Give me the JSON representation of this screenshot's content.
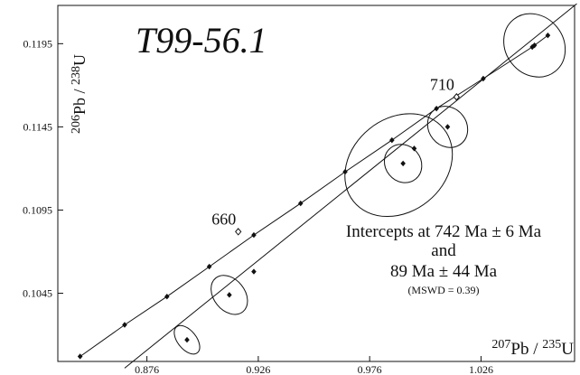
{
  "chart_data": {
    "type": "scatter",
    "title": "T99-56.1",
    "xlabel": {
      "sup1": "207",
      "el1": "Pb",
      "sep": " / ",
      "sup2": "235",
      "el2": "U"
    },
    "ylabel": {
      "sup1": "206",
      "el1": "Pb",
      "sep": " / ",
      "sup2": "238",
      "el2": "U"
    },
    "xlim": [
      0.836,
      1.068
    ],
    "ylim": [
      0.1004,
      0.1218
    ],
    "x_ticks": [
      "0.876",
      "0.926",
      "0.976",
      "1.026"
    ],
    "y_ticks": [
      "0.1195",
      "0.1145",
      "0.1095",
      "0.1045"
    ],
    "concordia": {
      "points": [
        [
          0.846,
          0.1007
        ],
        [
          0.866,
          0.1026
        ],
        [
          0.885,
          0.1043
        ],
        [
          0.904,
          0.1061
        ],
        [
          0.924,
          0.108
        ],
        [
          0.945,
          0.1099
        ],
        [
          0.965,
          0.1118
        ],
        [
          0.986,
          0.1137
        ],
        [
          1.006,
          0.1156
        ],
        [
          1.027,
          0.1174
        ],
        [
          1.049,
          0.1193
        ],
        [
          1.056,
          0.12
        ]
      ],
      "age_labels": [
        {
          "text": "660",
          "x": 0.917,
          "y": 0.1082
        },
        {
          "text": "710",
          "x": 1.015,
          "y": 0.1163
        }
      ]
    },
    "discordia": {
      "line": [
        [
          0.866,
          0.1
        ],
        [
          1.069,
          0.1219
        ]
      ],
      "ellipses": [
        {
          "cx": 0.894,
          "cy": 0.1017,
          "a": 0.0042,
          "b": 0.001
        },
        {
          "cx": 0.913,
          "cy": 0.1044,
          "a": 0.007,
          "b": 0.0013
        },
        {
          "cx": 0.989,
          "cy": 0.1122,
          "a": 0.026,
          "b": 0.0028
        },
        {
          "cx": 0.991,
          "cy": 0.1123,
          "a": 0.008,
          "b": 0.0012
        },
        {
          "cx": 1.011,
          "cy": 0.1145,
          "a": 0.0085,
          "b": 0.0013
        },
        {
          "cx": 1.05,
          "cy": 0.1194,
          "a": 0.013,
          "b": 0.002
        }
      ],
      "points": [
        [
          0.894,
          0.1017
        ],
        [
          0.913,
          0.1044
        ],
        [
          0.924,
          0.1058
        ],
        [
          0.991,
          0.1123
        ],
        [
          0.996,
          0.1132
        ],
        [
          1.011,
          0.1145
        ],
        [
          1.05,
          0.1194
        ]
      ]
    },
    "annotation": {
      "line1": "Intercepts at 742 Ma ± 6 Ma",
      "line2": "and",
      "line3": "89 Ma ± 44 Ma",
      "line4": "(MSWD = 0.39)"
    }
  }
}
